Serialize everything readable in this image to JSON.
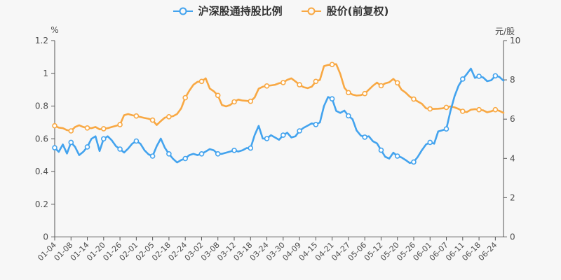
{
  "legend": {
    "items": [
      {
        "label": "沪深股通持股比例",
        "color": "#43a3ee"
      },
      {
        "label": "股价(前复权)",
        "color": "#f8a843"
      }
    ]
  },
  "colors": {
    "background": "#f7f7f7",
    "axis_line": "#555555",
    "axis_label": "#4d4d4d",
    "legend_text": "#333333",
    "marker_fill": "#ffffff",
    "series_blue": "#43a3ee",
    "series_orange": "#f8a843"
  },
  "chart_data": {
    "type": "line",
    "title": "",
    "grid": false,
    "legend_position": "top",
    "points_per_tick": 4,
    "x_tick_labels": [
      "01-04",
      "01-08",
      "01-14",
      "01-20",
      "01-26",
      "02-01",
      "02-05",
      "02-18",
      "02-24",
      "03-02",
      "03-08",
      "03-12",
      "03-18",
      "03-24",
      "03-30",
      "04-09",
      "04-15",
      "04-21",
      "04-27",
      "05-06",
      "05-12",
      "05-20",
      "05-26",
      "06-01",
      "06-07",
      "06-11",
      "06-18",
      "06-24"
    ],
    "left_axis": {
      "name": "%",
      "min": 0,
      "max": 1.2,
      "ticks": [
        0,
        0.2,
        0.4,
        0.6,
        0.8,
        1,
        1.2
      ],
      "tick_labels": [
        "0",
        "0.2",
        "0.4",
        "0.6",
        "0.8",
        "1",
        "1.2"
      ]
    },
    "right_axis": {
      "name": "元/股",
      "min": 0,
      "max": 10,
      "ticks": [
        0,
        2,
        4,
        6,
        8,
        10
      ],
      "tick_labels": [
        "0",
        "2",
        "4",
        "6",
        "8",
        "10"
      ]
    },
    "series": [
      {
        "name": "沪深股通持股比例",
        "axis": "left",
        "color": "#43a3ee",
        "values": [
          0.545,
          0.52,
          0.565,
          0.51,
          0.578,
          0.55,
          0.5,
          0.52,
          0.55,
          0.6,
          0.615,
          0.525,
          0.6,
          0.615,
          0.59,
          0.555,
          0.537,
          0.516,
          0.54,
          0.57,
          0.586,
          0.57,
          0.53,
          0.505,
          0.494,
          0.555,
          0.601,
          0.545,
          0.508,
          0.478,
          0.455,
          0.47,
          0.479,
          0.5,
          0.508,
          0.5,
          0.508,
          0.522,
          0.537,
          0.529,
          0.508,
          0.508,
          0.515,
          0.522,
          0.529,
          0.522,
          0.529,
          0.543,
          0.543,
          0.622,
          0.679,
          0.601,
          0.601,
          0.622,
          0.608,
          0.594,
          0.622,
          0.637,
          0.608,
          0.615,
          0.648,
          0.667,
          0.68,
          0.694,
          0.687,
          0.7,
          0.8,
          0.855,
          0.844,
          0.77,
          0.758,
          0.772,
          0.74,
          0.72,
          0.651,
          0.62,
          0.61,
          0.615,
          0.585,
          0.572,
          0.53,
          0.49,
          0.479,
          0.515,
          0.494,
          0.486,
          0.47,
          0.452,
          0.458,
          0.49,
          0.53,
          0.565,
          0.578,
          0.57,
          0.645,
          0.652,
          0.66,
          0.77,
          0.86,
          0.925,
          0.965,
          0.995,
          1.029,
          0.972,
          0.982,
          0.975,
          0.952,
          0.958,
          0.985,
          0.978,
          0.955
        ]
      },
      {
        "name": "股价(前复权)",
        "axis": "right",
        "color": "#f8a843",
        "values": [
          5.66,
          5.57,
          5.54,
          5.44,
          5.4,
          5.6,
          5.69,
          5.6,
          5.55,
          5.54,
          5.6,
          5.48,
          5.51,
          5.54,
          5.6,
          5.66,
          5.72,
          6.2,
          6.26,
          6.2,
          6.16,
          6.11,
          6.06,
          6.02,
          5.95,
          5.7,
          5.9,
          6.08,
          6.12,
          6.15,
          6.26,
          6.55,
          7.09,
          7.45,
          7.75,
          7.9,
          7.92,
          8.08,
          7.56,
          7.42,
          7.21,
          6.72,
          6.65,
          6.72,
          6.88,
          7.0,
          6.95,
          6.93,
          6.91,
          7.1,
          7.55,
          7.65,
          7.69,
          7.72,
          7.75,
          7.83,
          7.86,
          8.0,
          8.08,
          7.92,
          7.75,
          7.63,
          7.58,
          7.65,
          7.92,
          8.0,
          8.7,
          8.76,
          8.78,
          8.8,
          8.3,
          7.6,
          7.35,
          7.25,
          7.2,
          7.22,
          7.3,
          7.5,
          7.7,
          7.86,
          7.7,
          7.82,
          7.88,
          8.05,
          7.85,
          7.5,
          7.35,
          7.15,
          7.02,
          6.9,
          6.78,
          6.55,
          6.52,
          6.52,
          6.53,
          6.55,
          6.6,
          6.65,
          6.6,
          6.52,
          6.4,
          6.36,
          6.48,
          6.51,
          6.48,
          6.45,
          6.35,
          6.4,
          6.48,
          6.42,
          6.32
        ]
      }
    ]
  }
}
